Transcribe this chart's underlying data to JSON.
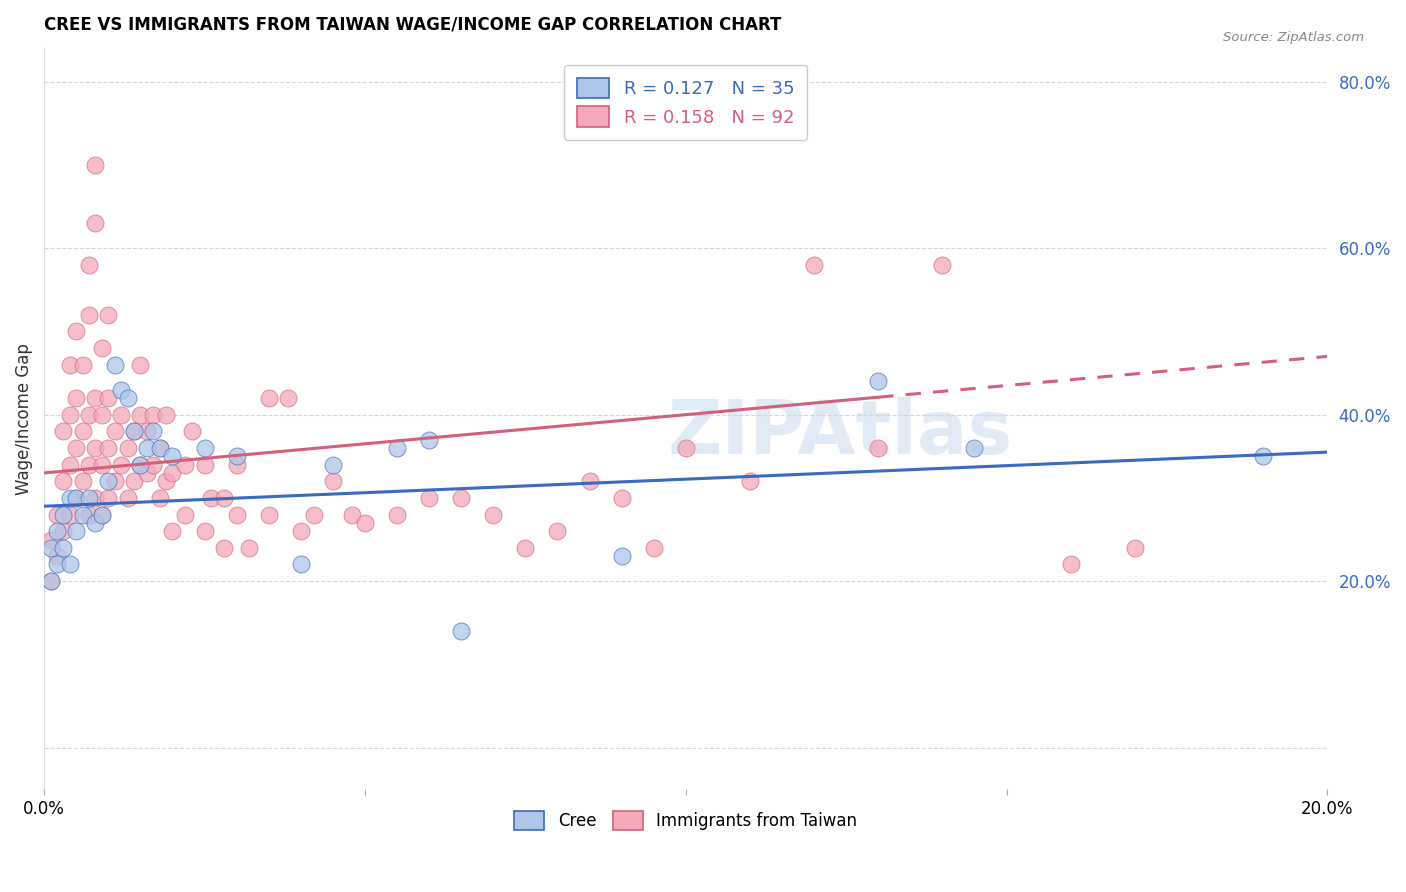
{
  "title": "CREE VS IMMIGRANTS FROM TAIWAN WAGE/INCOME GAP CORRELATION CHART",
  "source": "Source: ZipAtlas.com",
  "ylabel": "Wage/Income Gap",
  "yticks": [
    0.0,
    0.2,
    0.4,
    0.6,
    0.8
  ],
  "ytick_labels": [
    "",
    "20.0%",
    "40.0%",
    "60.0%",
    "80.0%"
  ],
  "xlim": [
    0.0,
    0.2
  ],
  "ylim": [
    -0.05,
    0.84
  ],
  "cree_color": "#aec6e8",
  "taiwan_color": "#f4a8ba",
  "cree_line_color": "#3a6bbf",
  "taiwan_line_color": "#d45f7a",
  "cree_R": 0.127,
  "cree_N": 35,
  "taiwan_R": 0.158,
  "taiwan_N": 92,
  "watermark": "ZIPAtlas",
  "cree_scatter": [
    [
      0.001,
      0.2
    ],
    [
      0.001,
      0.24
    ],
    [
      0.002,
      0.22
    ],
    [
      0.002,
      0.26
    ],
    [
      0.003,
      0.24
    ],
    [
      0.003,
      0.28
    ],
    [
      0.004,
      0.22
    ],
    [
      0.004,
      0.3
    ],
    [
      0.005,
      0.26
    ],
    [
      0.005,
      0.3
    ],
    [
      0.006,
      0.28
    ],
    [
      0.007,
      0.3
    ],
    [
      0.008,
      0.27
    ],
    [
      0.009,
      0.28
    ],
    [
      0.01,
      0.32
    ],
    [
      0.011,
      0.46
    ],
    [
      0.012,
      0.43
    ],
    [
      0.013,
      0.42
    ],
    [
      0.014,
      0.38
    ],
    [
      0.015,
      0.34
    ],
    [
      0.016,
      0.36
    ],
    [
      0.017,
      0.38
    ],
    [
      0.018,
      0.36
    ],
    [
      0.02,
      0.35
    ],
    [
      0.025,
      0.36
    ],
    [
      0.03,
      0.35
    ],
    [
      0.04,
      0.22
    ],
    [
      0.045,
      0.34
    ],
    [
      0.055,
      0.36
    ],
    [
      0.06,
      0.37
    ],
    [
      0.065,
      0.14
    ],
    [
      0.09,
      0.23
    ],
    [
      0.13,
      0.44
    ],
    [
      0.145,
      0.36
    ],
    [
      0.19,
      0.35
    ]
  ],
  "taiwan_scatter": [
    [
      0.001,
      0.2
    ],
    [
      0.001,
      0.25
    ],
    [
      0.002,
      0.23
    ],
    [
      0.002,
      0.28
    ],
    [
      0.003,
      0.26
    ],
    [
      0.003,
      0.32
    ],
    [
      0.003,
      0.38
    ],
    [
      0.004,
      0.28
    ],
    [
      0.004,
      0.34
    ],
    [
      0.004,
      0.4
    ],
    [
      0.004,
      0.46
    ],
    [
      0.005,
      0.3
    ],
    [
      0.005,
      0.36
    ],
    [
      0.005,
      0.42
    ],
    [
      0.005,
      0.5
    ],
    [
      0.006,
      0.32
    ],
    [
      0.006,
      0.38
    ],
    [
      0.006,
      0.46
    ],
    [
      0.007,
      0.28
    ],
    [
      0.007,
      0.34
    ],
    [
      0.007,
      0.4
    ],
    [
      0.007,
      0.52
    ],
    [
      0.007,
      0.58
    ],
    [
      0.008,
      0.3
    ],
    [
      0.008,
      0.36
    ],
    [
      0.008,
      0.42
    ],
    [
      0.008,
      0.63
    ],
    [
      0.008,
      0.7
    ],
    [
      0.009,
      0.28
    ],
    [
      0.009,
      0.34
    ],
    [
      0.009,
      0.4
    ],
    [
      0.009,
      0.48
    ],
    [
      0.01,
      0.3
    ],
    [
      0.01,
      0.36
    ],
    [
      0.01,
      0.42
    ],
    [
      0.01,
      0.52
    ],
    [
      0.011,
      0.32
    ],
    [
      0.011,
      0.38
    ],
    [
      0.012,
      0.34
    ],
    [
      0.012,
      0.4
    ],
    [
      0.013,
      0.3
    ],
    [
      0.013,
      0.36
    ],
    [
      0.014,
      0.32
    ],
    [
      0.014,
      0.38
    ],
    [
      0.015,
      0.34
    ],
    [
      0.015,
      0.4
    ],
    [
      0.015,
      0.46
    ],
    [
      0.016,
      0.33
    ],
    [
      0.016,
      0.38
    ],
    [
      0.017,
      0.34
    ],
    [
      0.017,
      0.4
    ],
    [
      0.018,
      0.3
    ],
    [
      0.018,
      0.36
    ],
    [
      0.019,
      0.32
    ],
    [
      0.019,
      0.4
    ],
    [
      0.02,
      0.26
    ],
    [
      0.02,
      0.33
    ],
    [
      0.022,
      0.28
    ],
    [
      0.022,
      0.34
    ],
    [
      0.023,
      0.38
    ],
    [
      0.025,
      0.26
    ],
    [
      0.025,
      0.34
    ],
    [
      0.026,
      0.3
    ],
    [
      0.028,
      0.24
    ],
    [
      0.028,
      0.3
    ],
    [
      0.03,
      0.28
    ],
    [
      0.03,
      0.34
    ],
    [
      0.032,
      0.24
    ],
    [
      0.035,
      0.28
    ],
    [
      0.035,
      0.42
    ],
    [
      0.038,
      0.42
    ],
    [
      0.04,
      0.26
    ],
    [
      0.042,
      0.28
    ],
    [
      0.045,
      0.32
    ],
    [
      0.048,
      0.28
    ],
    [
      0.05,
      0.27
    ],
    [
      0.055,
      0.28
    ],
    [
      0.06,
      0.3
    ],
    [
      0.065,
      0.3
    ],
    [
      0.07,
      0.28
    ],
    [
      0.075,
      0.24
    ],
    [
      0.08,
      0.26
    ],
    [
      0.085,
      0.32
    ],
    [
      0.09,
      0.3
    ],
    [
      0.095,
      0.24
    ],
    [
      0.1,
      0.36
    ],
    [
      0.11,
      0.32
    ],
    [
      0.12,
      0.58
    ],
    [
      0.13,
      0.36
    ],
    [
      0.14,
      0.58
    ],
    [
      0.16,
      0.22
    ],
    [
      0.17,
      0.24
    ]
  ]
}
